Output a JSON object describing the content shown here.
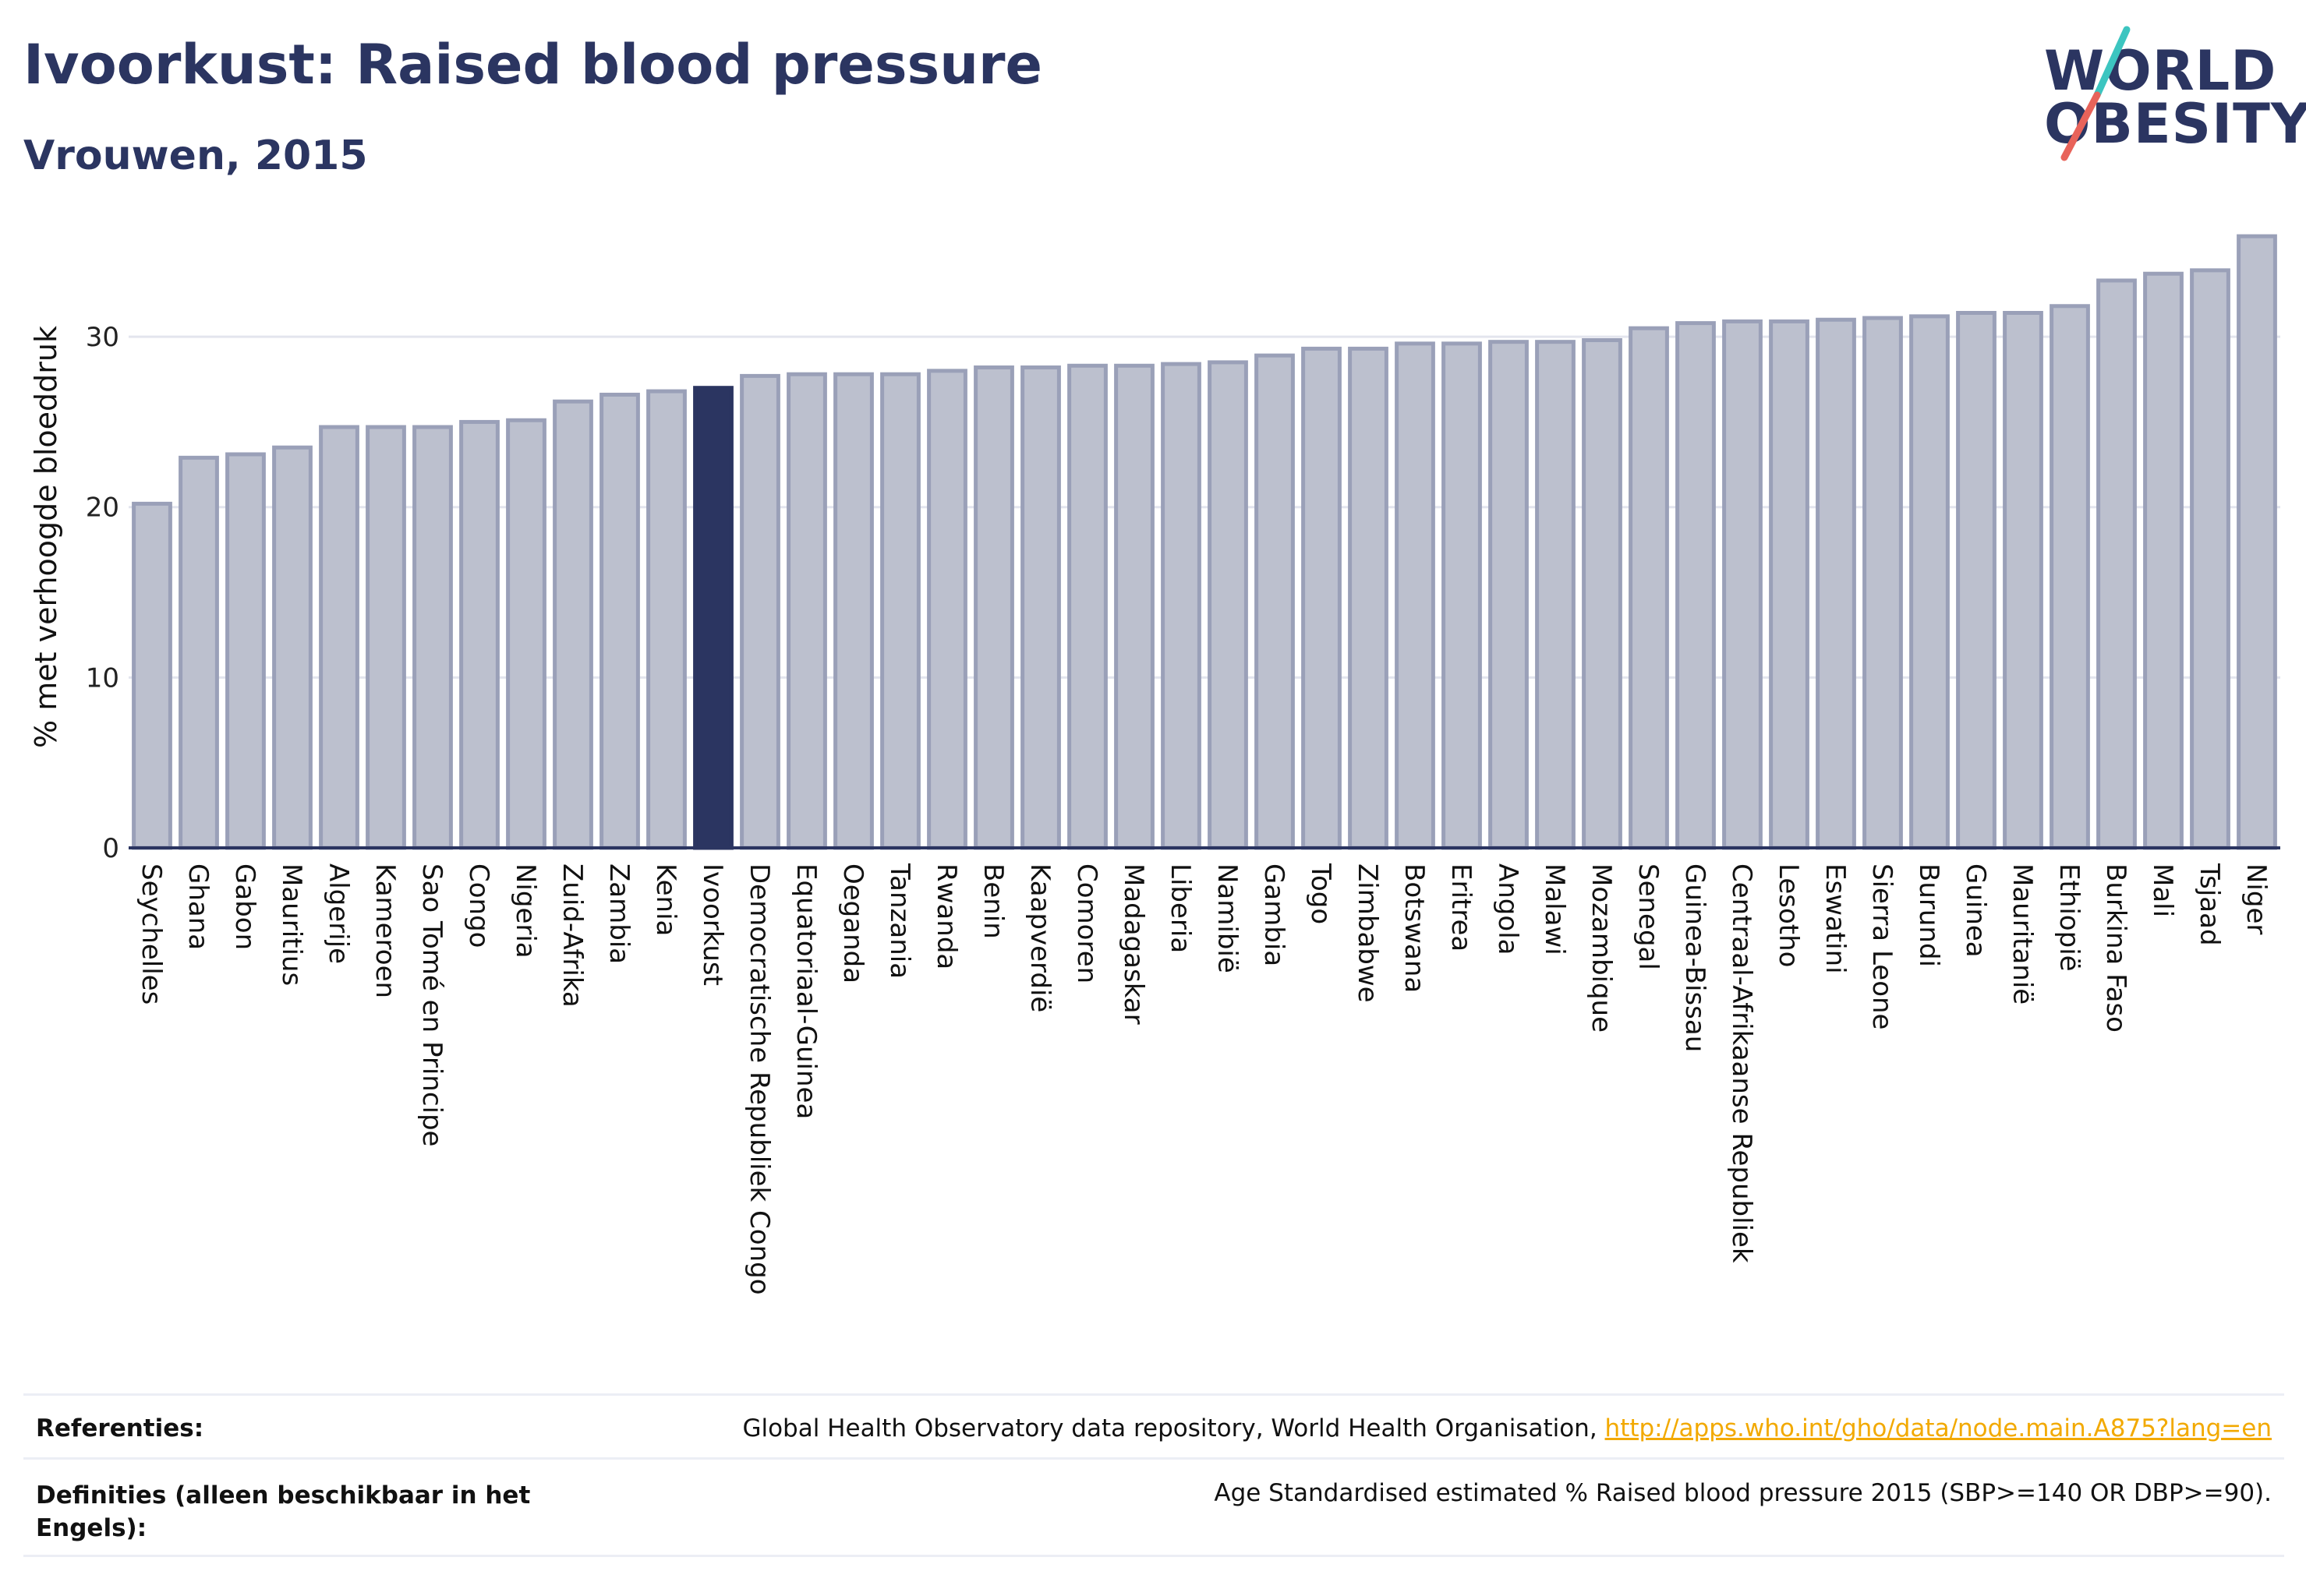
{
  "header": {
    "title": "Ivoorkust: Raised blood pressure",
    "subtitle": "Vrouwen, 2015"
  },
  "logo": {
    "line1": "WORLD",
    "line2": "OBESITY",
    "colors": {
      "text": "#2b3561",
      "slash_top": "#3cc5c0",
      "slash_bottom": "#e8635a"
    }
  },
  "colors": {
    "bar": "#bcc0ce",
    "bar_border": "#9aa0b8",
    "highlight": "#2b3561",
    "gridline": "#e3e5ee",
    "axis": "#2b3561",
    "link": "#f2a900"
  },
  "chart_data": {
    "type": "bar",
    "title": "Ivoorkust: Raised blood pressure",
    "subtitle": "Vrouwen, 2015",
    "xlabel": "",
    "ylabel": "% met verhoogde bloeddruk",
    "ylim": [
      0,
      36.5
    ],
    "yticks": [
      0,
      10,
      20,
      30
    ],
    "grid": true,
    "highlight_category": "Ivoorkust",
    "categories": [
      "Seychelles",
      "Ghana",
      "Gabon",
      "Mauritius",
      "Algerije",
      "Kameroen",
      "Sao Tomé en Principe",
      "Congo",
      "Nigeria",
      "Zuid-Afrika",
      "Zambia",
      "Kenia",
      "Ivoorkust",
      "Democratische Republiek Congo",
      "Equatoriaal-Guinea",
      "Oeganda",
      "Tanzania",
      "Rwanda",
      "Benin",
      "Kaapverdië",
      "Comoren",
      "Madagaskar",
      "Liberia",
      "Namibië",
      "Gambia",
      "Togo",
      "Zimbabwe",
      "Botswana",
      "Eritrea",
      "Angola",
      "Malawi",
      "Mozambique",
      "Senegal",
      "Guinea-Bissau",
      "Centraal-Afrikaanse Republiek",
      "Lesotho",
      "Eswatini",
      "Sierra Leone",
      "Burundi",
      "Guinea",
      "Mauritanië",
      "Ethiopië",
      "Burkina Faso",
      "Mali",
      "Tsjaad",
      "Niger"
    ],
    "values": [
      20.2,
      22.9,
      23.1,
      23.5,
      24.7,
      24.7,
      24.7,
      25.0,
      25.1,
      26.2,
      26.6,
      26.8,
      27.0,
      27.7,
      27.8,
      27.8,
      27.8,
      28.0,
      28.2,
      28.2,
      28.3,
      28.3,
      28.4,
      28.5,
      28.9,
      29.3,
      29.3,
      29.6,
      29.6,
      29.7,
      29.7,
      29.8,
      30.5,
      30.8,
      30.9,
      30.9,
      31.0,
      31.1,
      31.2,
      31.4,
      31.4,
      31.8,
      33.3,
      33.7,
      33.9,
      35.9
    ]
  },
  "footer": {
    "references_label": "Referenties:",
    "references_text": "Global Health Observatory data repository, World Health Organisation,",
    "references_link": "http://apps.who.int/gho/data/node.main.A875?lang=en",
    "definitions_label": "Definities (alleen beschikbaar in het Engels):",
    "definitions_text": "Age Standardised estimated % Raised blood pressure 2015 (SBP>=140 OR DBP>=90)."
  }
}
